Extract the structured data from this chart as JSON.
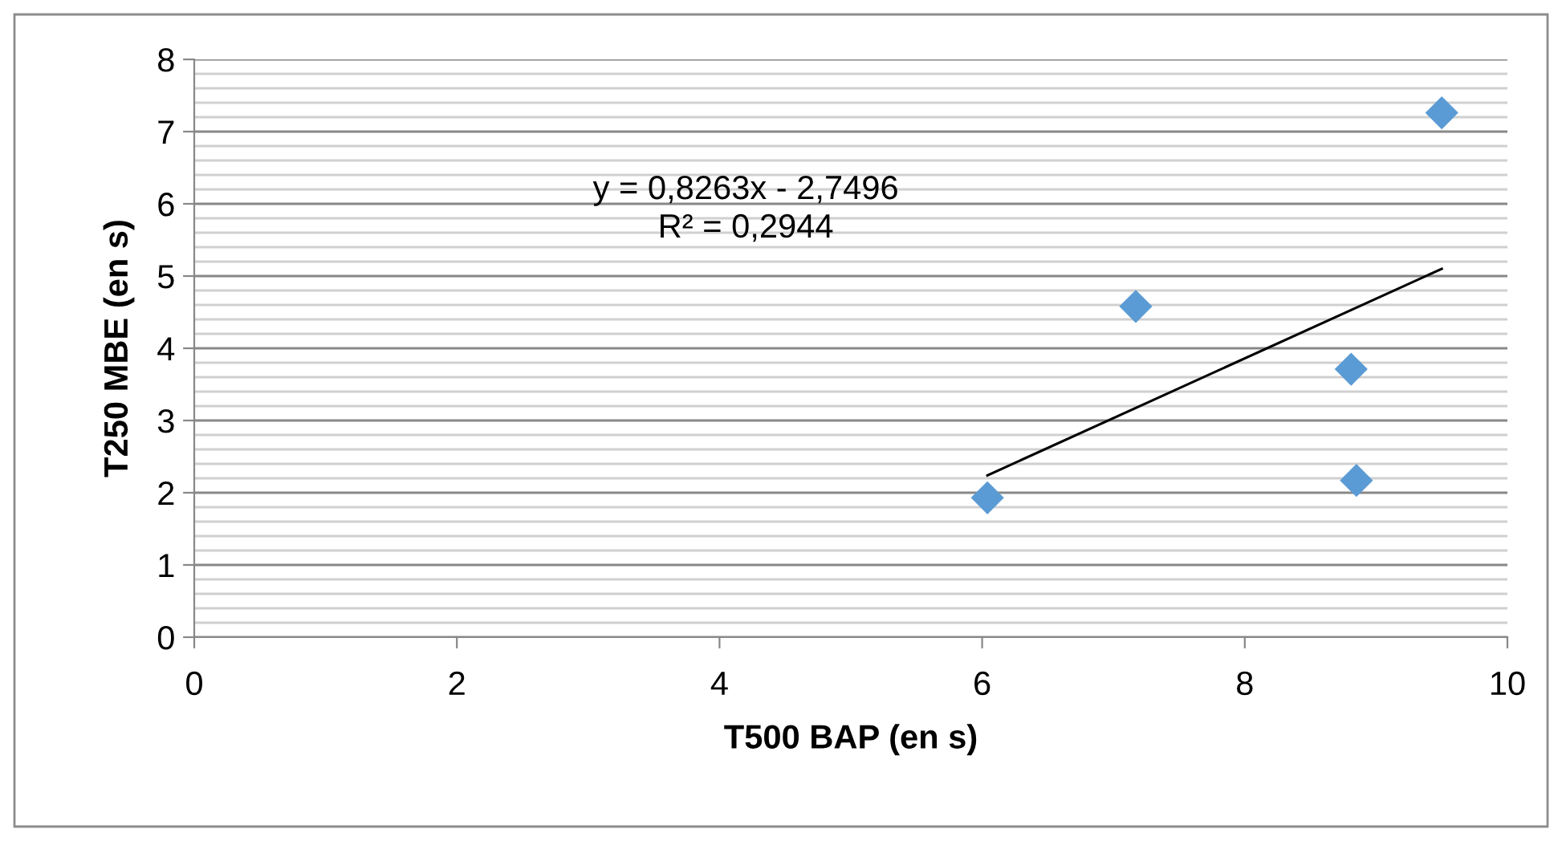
{
  "chart_data": {
    "type": "scatter",
    "xlabel": "T500 BAP (en s)",
    "ylabel": "T250 MBE (en s)",
    "series": [
      {
        "color": "#5b9bd5",
        "marker": "diamond",
        "x": [
          6.04,
          7.17,
          8.81,
          8.85,
          9.5
        ],
        "values": [
          1.93,
          4.58,
          3.71,
          2.17,
          7.26
        ]
      },
      {
        "type": "line",
        "color": "#000000",
        "marker": "none",
        "line_style": "solid",
        "x": [
          6.04,
          9.5
        ],
        "values": [
          2.24,
          5.1
        ]
      }
    ],
    "annotations": [
      "y = 0,8263x - 2,7496\nR² = 0,2944"
    ],
    "xlim": [
      0,
      10
    ],
    "xticks": [
      0,
      2,
      4,
      6,
      8,
      10
    ],
    "ylim": [
      0,
      8
    ],
    "yticks": [
      0,
      {
        "value": 0.2,
        "label": null
      },
      {
        "value": 0.4,
        "label": null
      },
      {
        "value": 0.6,
        "label": null
      },
      {
        "value": 0.8,
        "label": null
      },
      1,
      {
        "value": 1.2,
        "label": null
      },
      {
        "value": 1.4,
        "label": null
      },
      {
        "value": 1.6,
        "label": null
      },
      {
        "value": 1.8,
        "label": null
      },
      2,
      {
        "value": 2.2,
        "label": null
      },
      {
        "value": 2.4,
        "label": null
      },
      {
        "value": 2.6,
        "label": null
      },
      {
        "value": 2.8,
        "label": null
      },
      3,
      {
        "value": 3.2,
        "label": null
      },
      {
        "value": 3.4,
        "label": null
      },
      {
        "value": 3.6,
        "label": null
      },
      {
        "value": 3.8,
        "label": null
      },
      4,
      {
        "value": 4.2,
        "label": null
      },
      {
        "value": 4.4,
        "label": null
      },
      {
        "value": 4.6,
        "label": null
      },
      {
        "value": 4.8,
        "label": null
      },
      5,
      {
        "value": 5.2,
        "label": null
      },
      {
        "value": 5.4,
        "label": null
      },
      {
        "value": 5.6,
        "label": null
      },
      {
        "value": 5.8,
        "label": null
      },
      6,
      {
        "value": 6.2,
        "label": null
      },
      {
        "value": 6.4,
        "label": null
      },
      {
        "value": 6.6,
        "label": null
      },
      {
        "value": 6.8,
        "label": null
      },
      7,
      {
        "value": 7.2,
        "label": null
      },
      {
        "value": 7.4,
        "label": null
      },
      {
        "value": 7.6,
        "label": null
      },
      {
        "value": 7.8,
        "label": null
      },
      8
    ],
    "grid": "y",
    "legend": false
  }
}
